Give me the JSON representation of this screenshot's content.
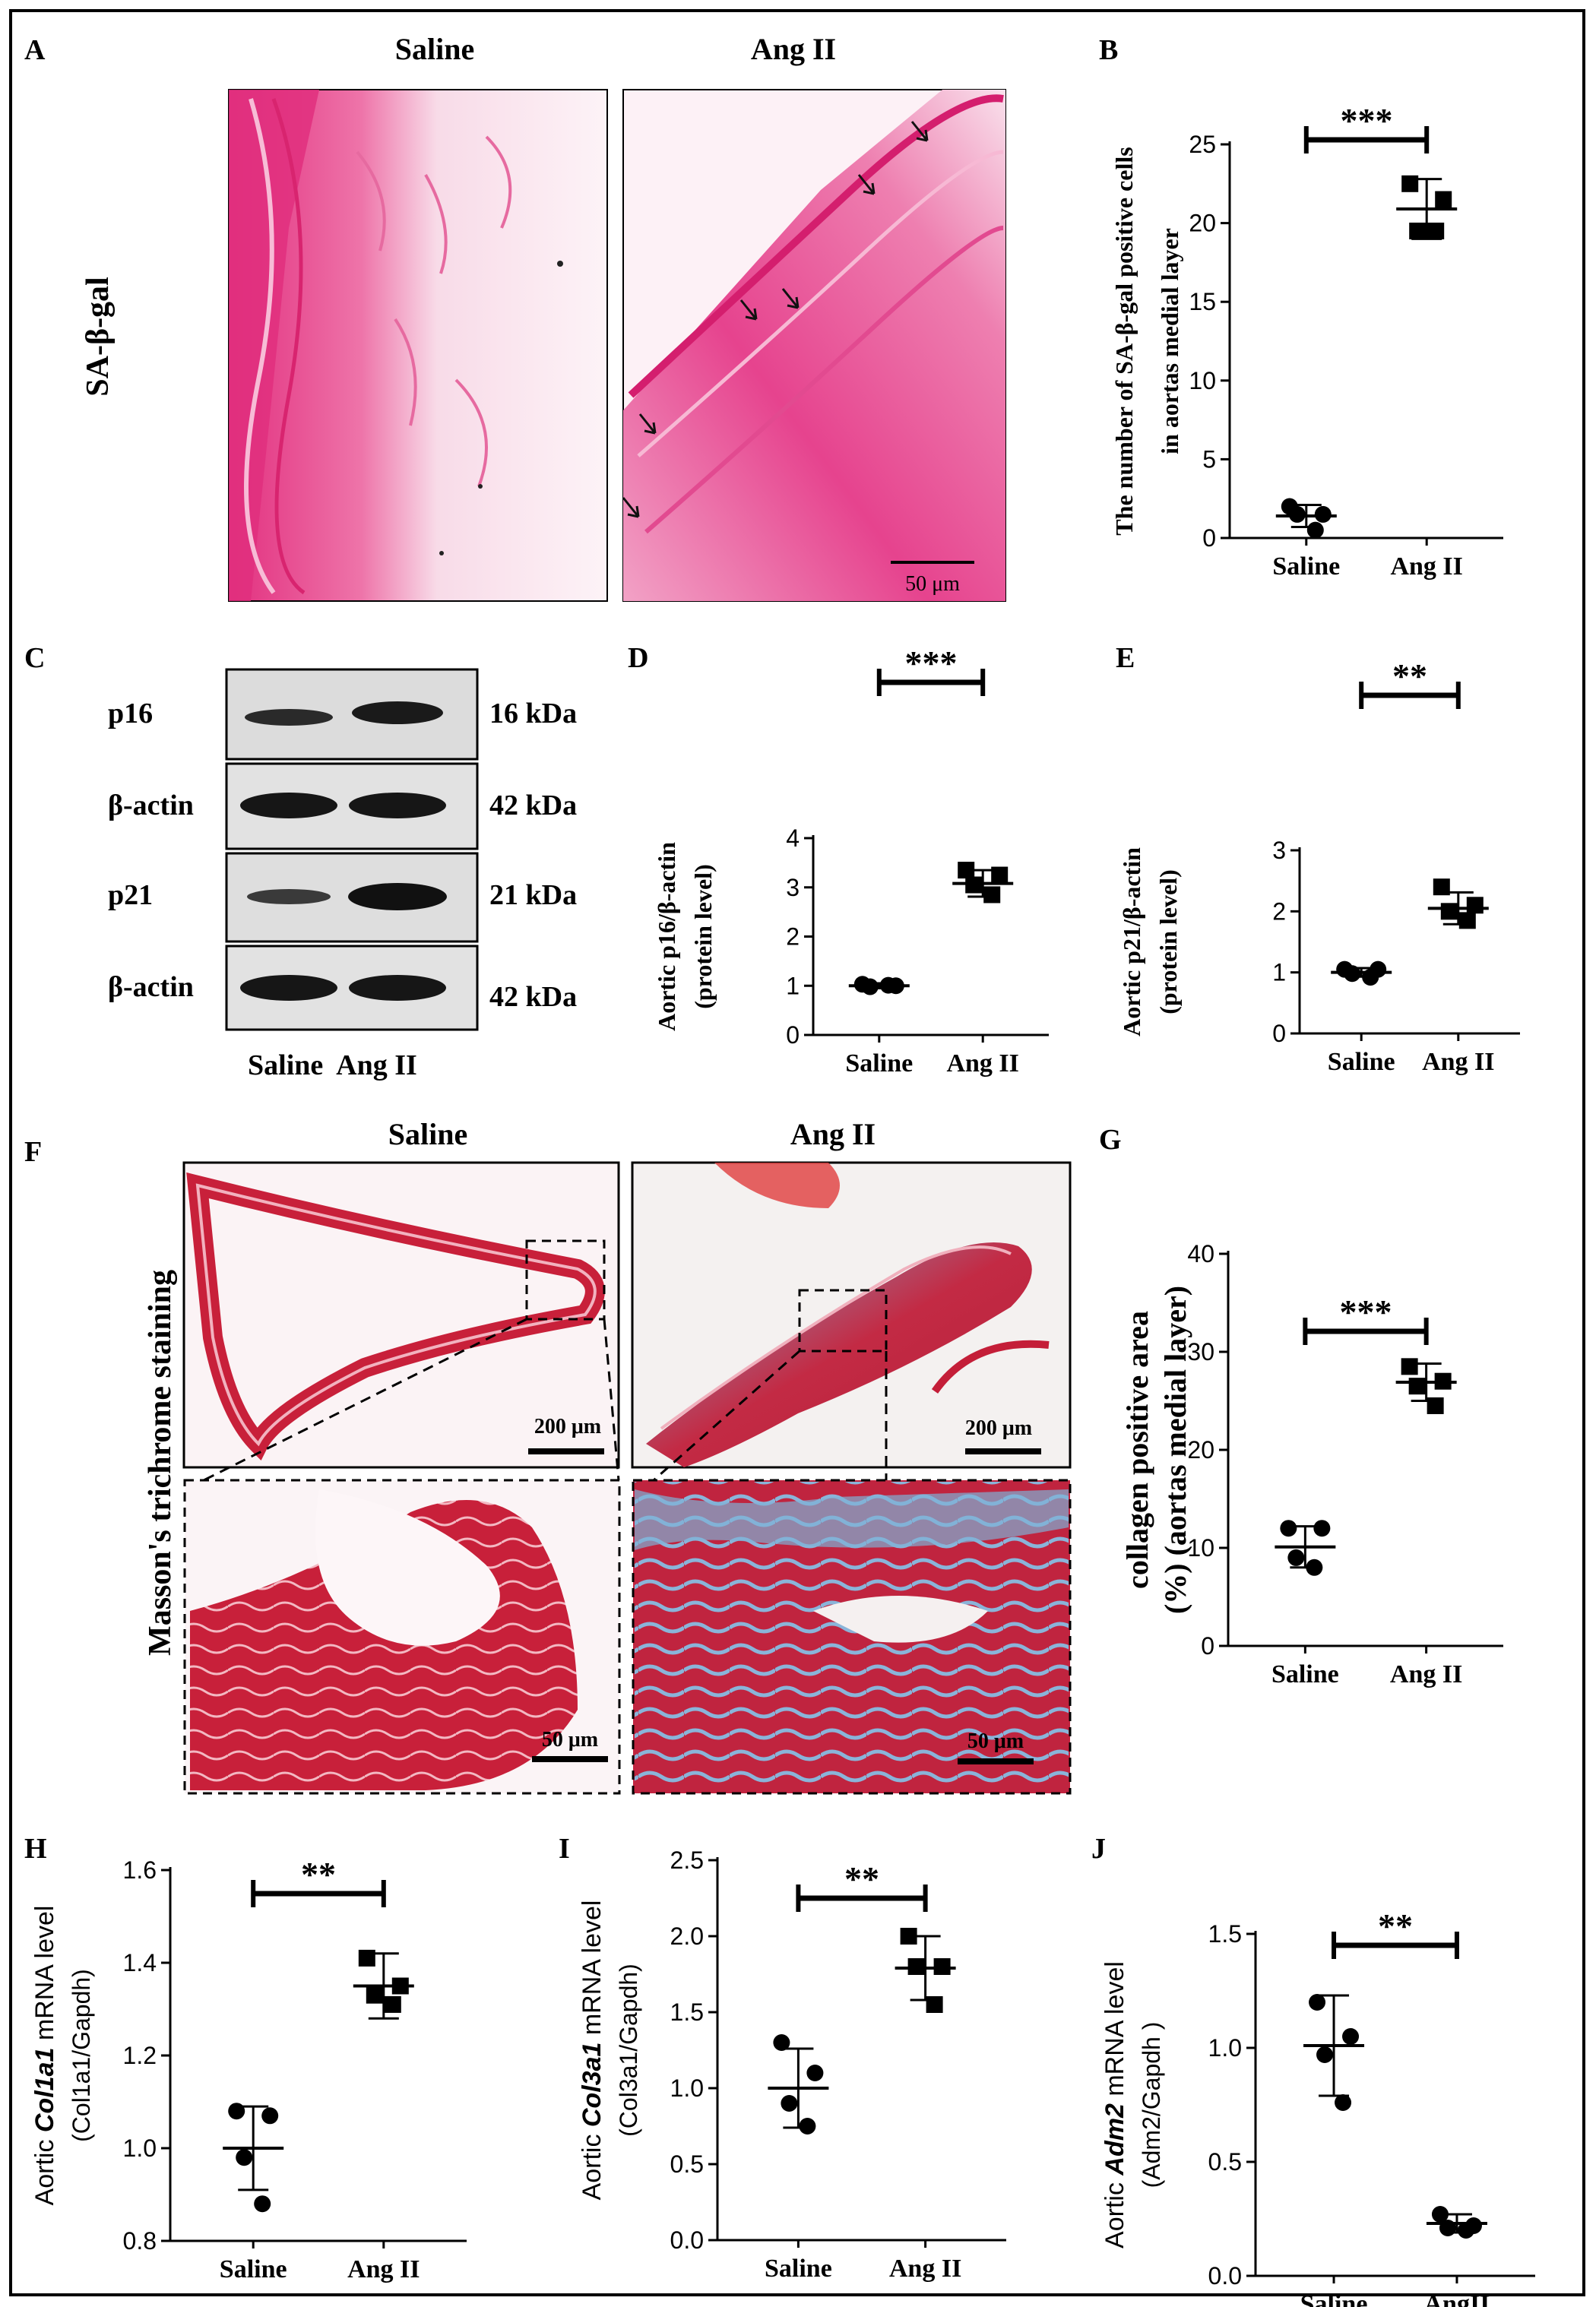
{
  "panel_letters": [
    "A",
    "B",
    "C",
    "D",
    "E",
    "F",
    "G",
    "H",
    "I",
    "J"
  ],
  "panel_a": {
    "col_labels": [
      "Saline",
      "Ang II"
    ],
    "row_label": "SA-β-gal",
    "scale_bar": "50 μm"
  },
  "panel_c": {
    "rows": [
      {
        "label": "p16",
        "kda": "16 kDa"
      },
      {
        "label": "β-actin",
        "kda": "42 kDa"
      },
      {
        "label": "p21",
        "kda": "21 kDa"
      },
      {
        "label": "β-actin",
        "kda": "42 kDa"
      }
    ],
    "lane_labels": "Saline  Ang II"
  },
  "panel_f": {
    "col_labels": [
      "Saline",
      "Ang II"
    ],
    "row_label": "Masson's  trichrome staining",
    "scale_bars": [
      "200 μm",
      "200 μm",
      "50 μm",
      "50 μm"
    ]
  },
  "colors": {
    "he_pink": "#e83e8c",
    "he_light": "#f6d2e2",
    "tissue_red": "#c81e3c",
    "collagen_blue": "#6aa7d2",
    "dot": "#000000"
  },
  "chart_data": [
    {
      "panel": "B",
      "type": "scatter",
      "categories": [
        "Saline",
        "Ang II"
      ],
      "ylabel": "The number of SA-β-gal positive cells in aortas medial  layer",
      "ylim": [
        0,
        25
      ],
      "yticks": [
        0,
        5,
        10,
        15,
        20,
        25
      ],
      "groups": [
        {
          "name": "Saline",
          "marker": "circle",
          "points": [
            2,
            1.5,
            1.5,
            0.5
          ],
          "mean": 1.4,
          "sd": 0.7
        },
        {
          "name": "Ang II",
          "marker": "square",
          "points": [
            22.5,
            21.5,
            19.5,
            19.5
          ],
          "mean": 20.9,
          "sd": 1.9
        }
      ],
      "significance": "***"
    },
    {
      "panel": "D",
      "type": "scatter",
      "categories": [
        "Saline",
        "Ang II"
      ],
      "ylabel": "Aortic p16/β-actin (protein level)",
      "ylim": [
        0,
        4
      ],
      "yticks": [
        0,
        1,
        2,
        3,
        4
      ],
      "groups": [
        {
          "name": "Saline",
          "marker": "circle",
          "points": [
            1.03,
            1.0,
            0.98,
            1.01
          ],
          "mean": 1.0,
          "sd": 0.05
        },
        {
          "name": "Ang II",
          "marker": "square",
          "points": [
            3.35,
            3.25,
            3.05,
            2.85
          ],
          "mean": 3.08,
          "sd": 0.27
        }
      ],
      "significance": "***"
    },
    {
      "panel": "E",
      "type": "scatter",
      "categories": [
        "Saline",
        "Ang II"
      ],
      "ylabel": "Aortic p21/β-actin (protein level)",
      "ylim": [
        0,
        3
      ],
      "yticks": [
        0,
        1,
        2,
        3
      ],
      "groups": [
        {
          "name": "Saline",
          "marker": "circle",
          "points": [
            1.05,
            1.05,
            0.98,
            0.92
          ],
          "mean": 1.0,
          "sd": 0.07
        },
        {
          "name": "Ang II",
          "marker": "square",
          "points": [
            2.4,
            2.1,
            2.0,
            1.85
          ],
          "mean": 2.05,
          "sd": 0.26
        }
      ],
      "significance": "**"
    },
    {
      "panel": "G",
      "type": "scatter",
      "categories": [
        "Saline",
        "Ang II"
      ],
      "ylabel": "collagen positive area (%) (aortas medial  layer)",
      "ylim": [
        0,
        40
      ],
      "yticks": [
        0,
        10,
        20,
        30,
        40
      ],
      "groups": [
        {
          "name": "Saline",
          "marker": "circle",
          "points": [
            12,
            12,
            9,
            8
          ],
          "mean": 10.1,
          "sd": 2.1
        },
        {
          "name": "Ang II",
          "marker": "square",
          "points": [
            28.5,
            27,
            26.5,
            24.5
          ],
          "mean": 26.9,
          "sd": 1.9
        }
      ],
      "significance": "***"
    },
    {
      "panel": "H",
      "type": "scatter",
      "categories": [
        "Saline",
        "Ang II"
      ],
      "ylabel_parts": [
        "Aortic ",
        "Col1a1",
        " mRNA level"
      ],
      "ylabel2": "(Col1a1/Gapdh)",
      "ylim": [
        0.8,
        1.6
      ],
      "yticks": [
        "0.8",
        "1.0",
        "1.2",
        "1.4",
        "1.6"
      ],
      "groups": [
        {
          "name": "Saline",
          "marker": "circle",
          "points": [
            1.08,
            1.07,
            0.98,
            0.88
          ],
          "mean": 1.0,
          "sd": 0.09
        },
        {
          "name": "Ang II",
          "marker": "square",
          "points": [
            1.41,
            1.35,
            1.33,
            1.31
          ],
          "mean": 1.35,
          "sd": 0.07
        }
      ],
      "significance": "**"
    },
    {
      "panel": "I",
      "type": "scatter",
      "categories": [
        "Saline",
        "Ang II"
      ],
      "ylabel_parts": [
        "Aortic ",
        "Col3a1",
        " mRNA level"
      ],
      "ylabel2": "(Col3a1/Gapdh)",
      "ylim": [
        0,
        2.5
      ],
      "yticks": [
        "0.0",
        "0.5",
        "1.0",
        "1.5",
        "2.0",
        "2.5"
      ],
      "groups": [
        {
          "name": "Saline",
          "marker": "circle",
          "points": [
            1.3,
            1.1,
            0.9,
            0.75
          ],
          "mean": 1.0,
          "sd": 0.26
        },
        {
          "name": "Ang II",
          "marker": "square",
          "points": [
            2.0,
            1.8,
            1.8,
            1.55
          ],
          "mean": 1.79,
          "sd": 0.21
        }
      ],
      "significance": "**"
    },
    {
      "panel": "J",
      "type": "scatter",
      "categories": [
        "Saline",
        "AngII"
      ],
      "ylabel_parts": [
        "Aortic ",
        "Adm2",
        " mRNA level"
      ],
      "ylabel2": "(Adm2/Gapdh )",
      "ylim": [
        0,
        1.5
      ],
      "yticks": [
        "0.0",
        "0.5",
        "1.0",
        "1.5"
      ],
      "groups": [
        {
          "name": "Saline",
          "marker": "circle",
          "points": [
            1.2,
            1.05,
            0.97,
            0.76
          ],
          "mean": 1.01,
          "sd": 0.22
        },
        {
          "name": "AngII",
          "marker": "circle",
          "points": [
            0.27,
            0.22,
            0.21,
            0.2
          ],
          "mean": 0.23,
          "sd": 0.04
        }
      ],
      "significance": "**"
    }
  ]
}
